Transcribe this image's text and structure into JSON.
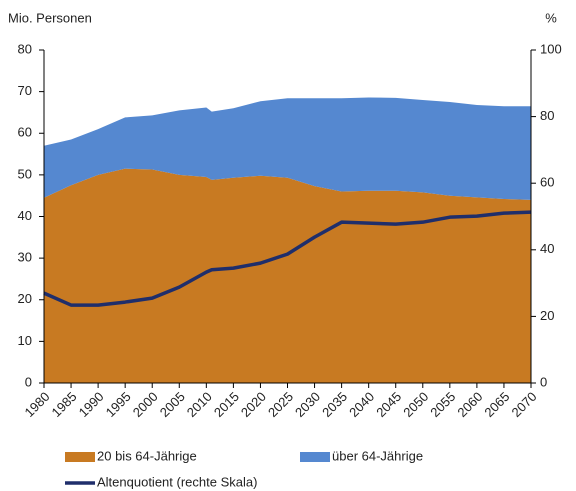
{
  "chart_data": {
    "type": "stacked-area-line",
    "y_label": "Mio. Personen",
    "y2_label": "%",
    "x": [
      1980,
      1985,
      1990,
      1995,
      2000,
      2005,
      2010,
      2011,
      2015,
      2020,
      2025,
      2030,
      2035,
      2040,
      2045,
      2050,
      2055,
      2060,
      2065,
      2070
    ],
    "series": [
      {
        "name": "20 bis 64-Jährige",
        "color": "#c87a22",
        "values": [
          44.5,
          47.5,
          50,
          51.5,
          51.3,
          50,
          49.5,
          48.8,
          49.3,
          49.8,
          49.3,
          47.3,
          46,
          46.2,
          46.2,
          45.8,
          45,
          44.6,
          44.2,
          44
        ]
      },
      {
        "name": "über 64-Jährige",
        "color": "#5588d0",
        "values": [
          12.5,
          11,
          11,
          12.3,
          13,
          15.5,
          16.7,
          16.4,
          16.7,
          17.9,
          19.1,
          21.1,
          22.4,
          22.4,
          22.3,
          22.2,
          22.5,
          22.2,
          22.3,
          22.5
        ]
      },
      {
        "name": "Altenquotient (rechte Skala)",
        "color": "#1f2e6b",
        "axis": "y2",
        "values": [
          27,
          23.4,
          23.4,
          24.3,
          25.5,
          28.8,
          33.3,
          34,
          34.5,
          36,
          38.7,
          43.8,
          48.3,
          48,
          47.7,
          48.3,
          49.8,
          50.1,
          51,
          51.3
        ]
      }
    ],
    "xlim": [
      1980,
      2070
    ],
    "xticks": [
      1980,
      1985,
      1990,
      1995,
      2000,
      2005,
      2010,
      2015,
      2020,
      2025,
      2030,
      2035,
      2040,
      2045,
      2050,
      2055,
      2060,
      2065,
      2070
    ],
    "ylim": [
      0,
      80
    ],
    "yticks": [
      0,
      10,
      20,
      30,
      40,
      50,
      60,
      70,
      80
    ],
    "y2lim": [
      0,
      100
    ],
    "y2ticks": [
      0,
      20,
      40,
      60,
      80,
      100
    ],
    "grid": false
  }
}
